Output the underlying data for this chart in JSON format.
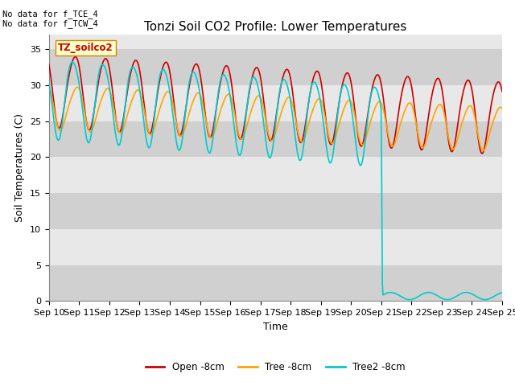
{
  "title": "Tonzi Soil CO2 Profile: Lower Temperatures",
  "xlabel": "Time",
  "ylabel": "Soil Temperatures (C)",
  "ylim": [
    0,
    37
  ],
  "yticks": [
    0,
    5,
    10,
    15,
    20,
    25,
    30,
    35
  ],
  "xticklabels": [
    "Sep 10",
    "Sep 11",
    "Sep 12",
    "Sep 13",
    "Sep 14",
    "Sep 15",
    "Sep 16",
    "Sep 17",
    "Sep 18",
    "Sep 19",
    "Sep 20",
    "Sep 21",
    "Sep 22",
    "Sep 23",
    "Sep 24",
    "Sep 25"
  ],
  "no_data_text": [
    "No data for f_TCE_4",
    "No data for f_TCW_4"
  ],
  "label_box_text": "TZ_soilco2",
  "legend_labels": [
    "Open -8cm",
    "Tree -8cm",
    "Tree2 -8cm"
  ],
  "line_colors": [
    "#cc0000",
    "#ffa500",
    "#00cccc"
  ],
  "background_color": "#ffffff",
  "plot_bg_light": "#e8e8e8",
  "plot_bg_dark": "#d0d0d0",
  "title_fontsize": 11,
  "axis_label_fontsize": 9,
  "tick_fontsize": 8,
  "n_days": 15,
  "pts_per_day": 48,
  "drop_day": 11.0
}
